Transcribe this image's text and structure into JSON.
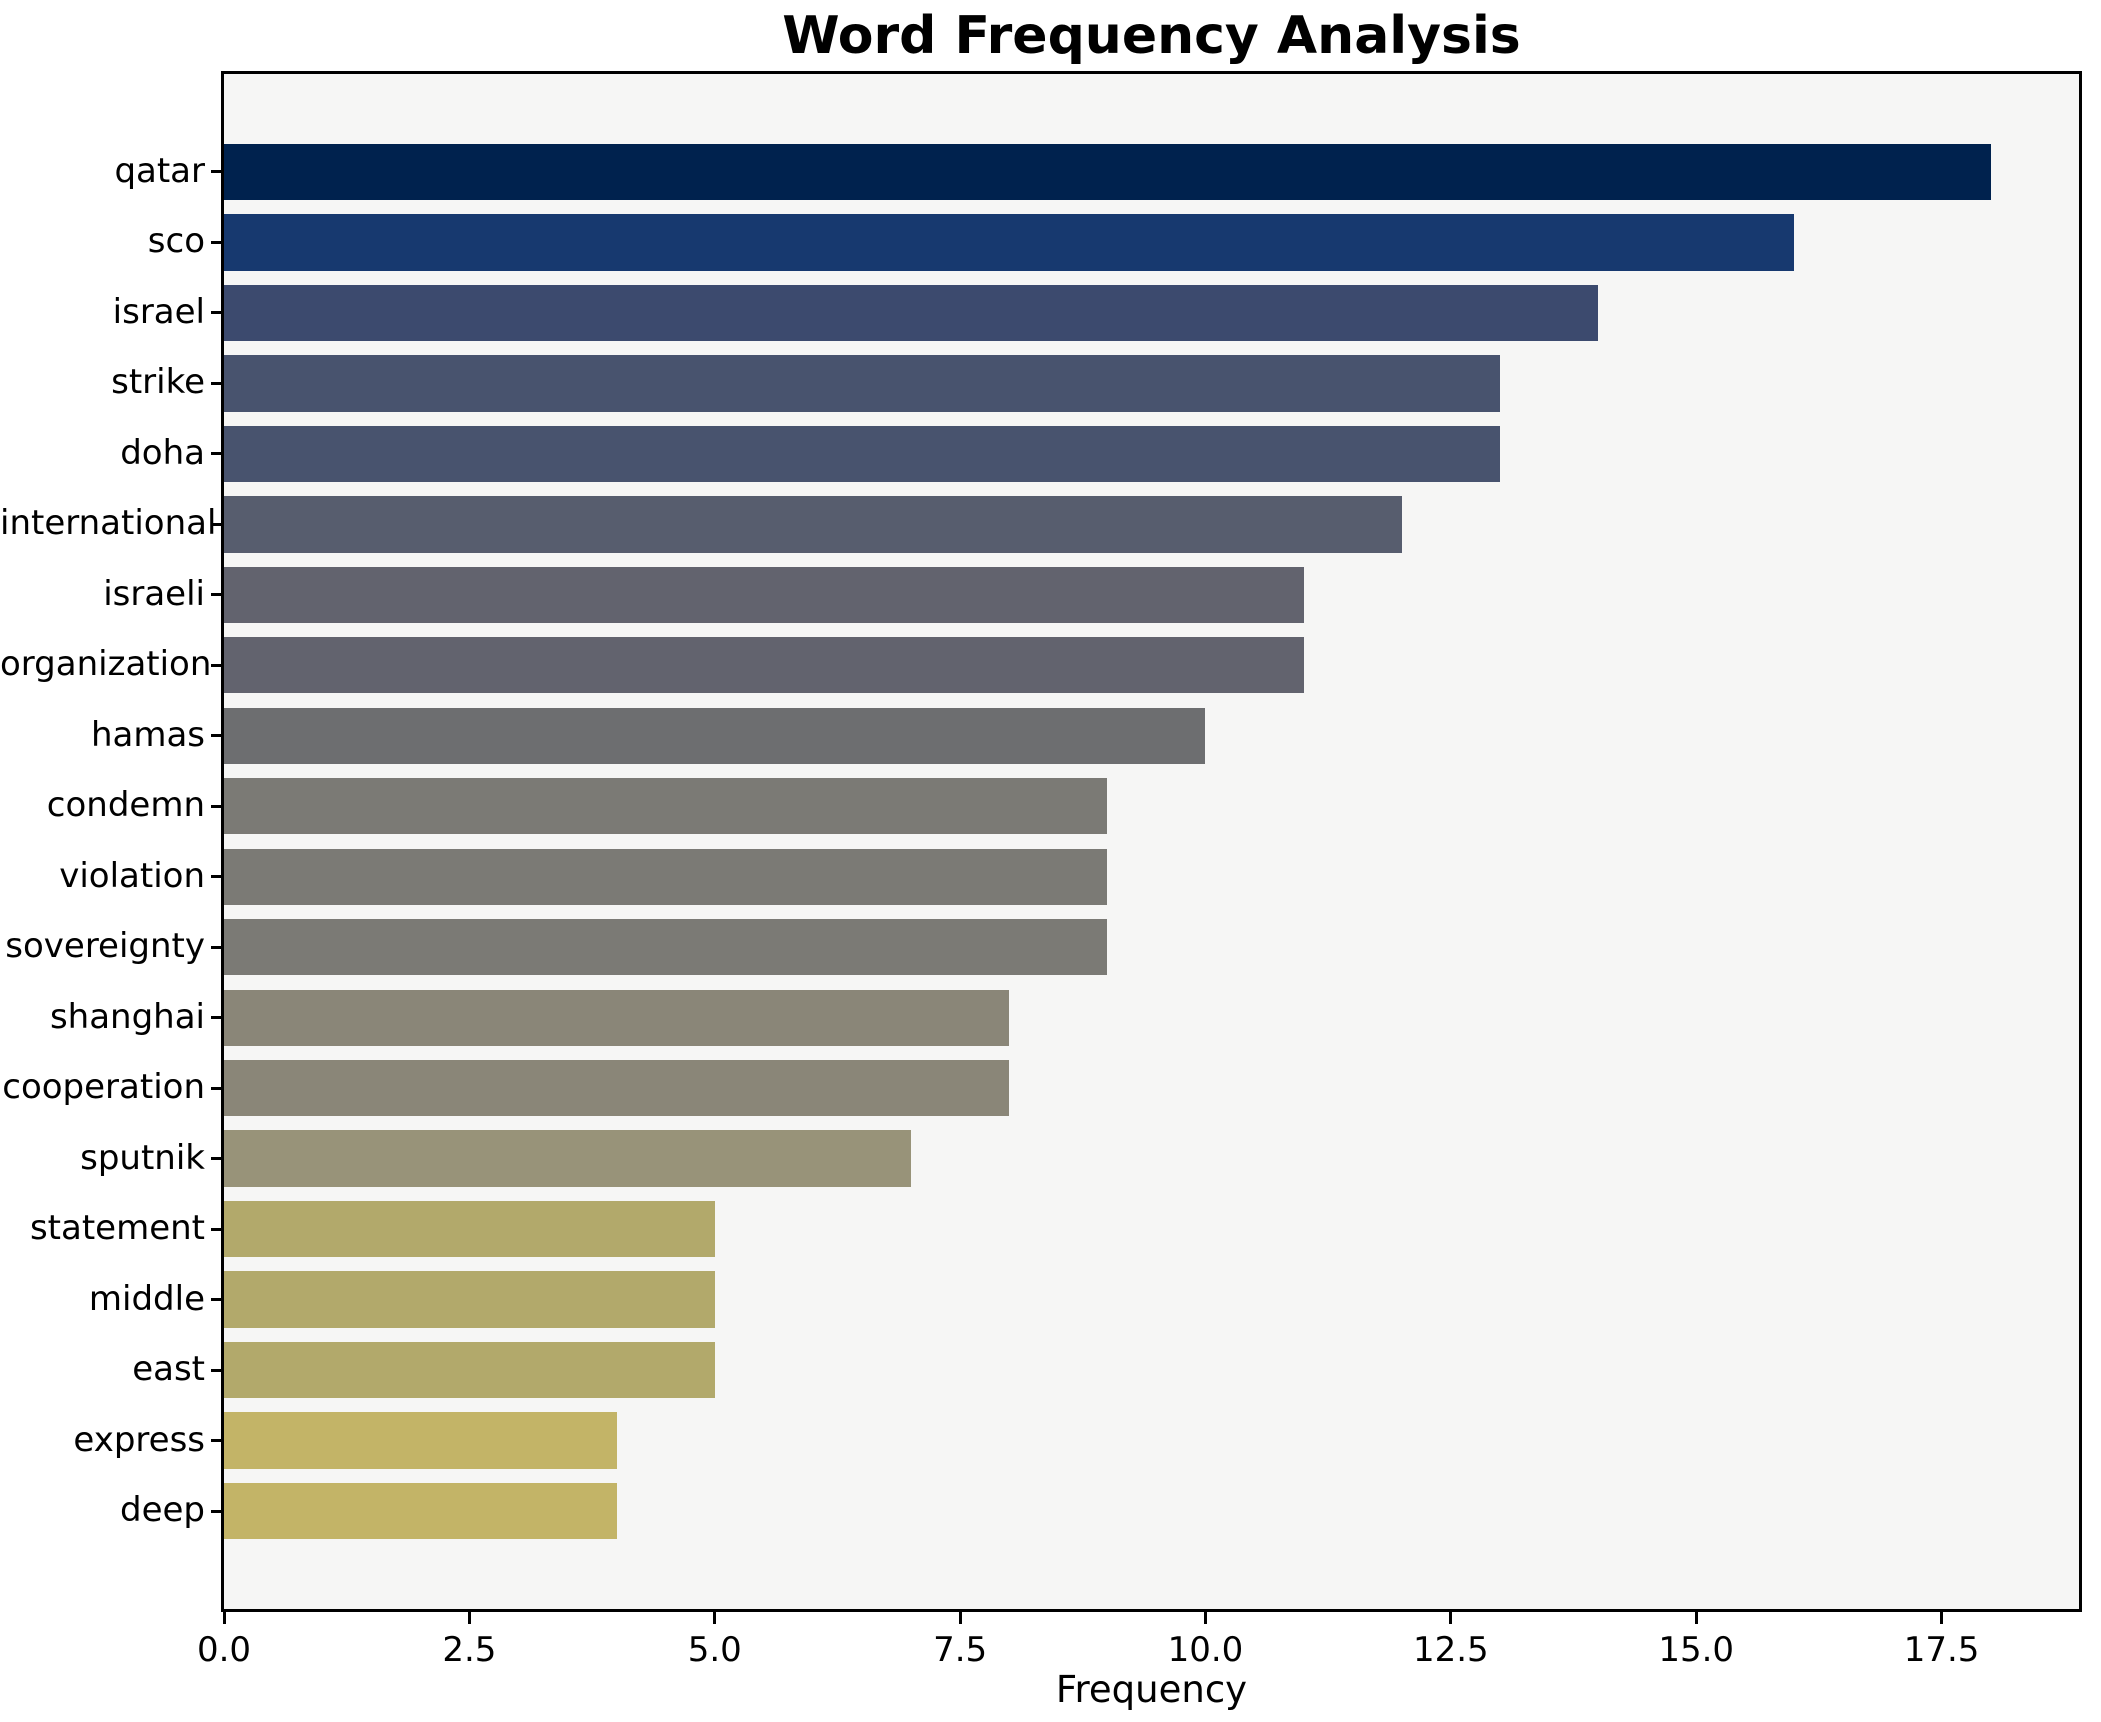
{
  "chart_data": {
    "type": "bar",
    "orientation": "horizontal",
    "title": "Word Frequency Analysis",
    "xlabel": "Frequency",
    "ylabel": "",
    "categories": [
      "qatar",
      "sco",
      "israel",
      "strike",
      "doha",
      "international",
      "israeli",
      "organization",
      "hamas",
      "condemn",
      "violation",
      "sovereignty",
      "shanghai",
      "cooperation",
      "sputnik",
      "statement",
      "middle",
      "east",
      "express",
      "deep"
    ],
    "values": [
      18,
      16,
      14,
      13,
      13,
      12,
      11,
      11,
      10,
      9,
      9,
      9,
      8,
      8,
      7,
      5,
      5,
      5,
      4,
      4
    ],
    "bar_colors": [
      "#00224e",
      "#17396f",
      "#3c4a6e",
      "#48536e",
      "#48536e",
      "#575d6e",
      "#62636e",
      "#62636e",
      "#6d6e70",
      "#7b7a75",
      "#7b7a75",
      "#7b7a75",
      "#8a8678",
      "#8a8678",
      "#989379",
      "#b2a96b",
      "#b2a96b",
      "#b2a96b",
      "#c3b467",
      "#c3b467"
    ],
    "x_ticks": [
      0.0,
      2.5,
      5.0,
      7.5,
      10.0,
      12.5,
      15.0,
      17.5
    ],
    "x_tick_labels": [
      "0.0",
      "2.5",
      "5.0",
      "7.5",
      "10.0",
      "12.5",
      "15.0",
      "17.5"
    ],
    "xlim": [
      0,
      18.9
    ],
    "grid": false,
    "legend": null,
    "plot_bg_color": "#f6f6f5",
    "figure_bg_color": "#ffffff",
    "text_color": "#000000"
  }
}
